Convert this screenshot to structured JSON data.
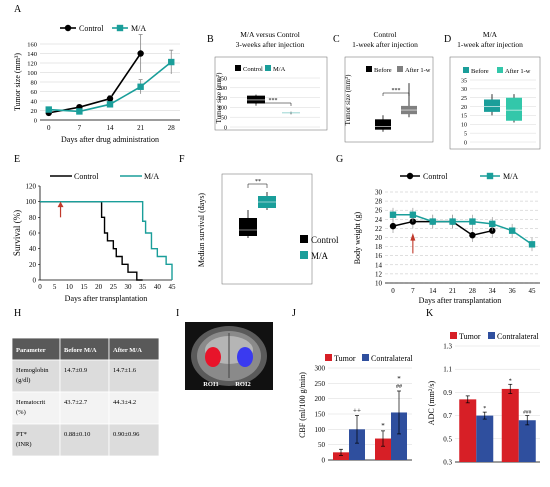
{
  "letters": {
    "A": "A",
    "B": "B",
    "C": "C",
    "D": "D",
    "E": "E",
    "F": "F",
    "G": "G",
    "H": "H",
    "I": "I",
    "J": "J",
    "K": "K"
  },
  "colors": {
    "control": "#000000",
    "ma": "#1a9e9a",
    "before": "#000000",
    "after": "#808080",
    "before_d": "#1a9e9a",
    "after_d": "#33c7aa",
    "tumor": "#d71f26",
    "contra": "#2f4f9e",
    "arrow": "#c0392b",
    "table_head": "#595959",
    "table_a": "#dcdcdc",
    "table_b": "#f3f3f3"
  },
  "panelA": {
    "ylabel": "Tumor size (mm³)",
    "xlabel": "Days after drug administration",
    "legend": [
      "Control",
      "M/A"
    ],
    "xticks": [
      "0",
      "7",
      "14",
      "21",
      "28"
    ],
    "yticks": [
      "0",
      "20",
      "40",
      "60",
      "80",
      "100",
      "120",
      "140",
      "160"
    ],
    "chart_data": {
      "type": "line",
      "x": [
        0,
        7,
        14,
        21,
        28
      ],
      "ylim": [
        0,
        160
      ],
      "series": [
        {
          "name": "Control",
          "values": [
            15,
            27,
            45,
            140,
            null
          ],
          "err": [
            3,
            4,
            6,
            40,
            null
          ]
        },
        {
          "name": "M/A",
          "values": [
            22,
            18,
            33,
            70,
            122
          ],
          "err": [
            3,
            3,
            5,
            15,
            25
          ]
        }
      ]
    }
  },
  "panelB": {
    "title": "M/A versus Control\n3-weeks after injection",
    "legend": [
      "Control",
      "M/A"
    ],
    "ylabel": "Tumor size (mm³)",
    "yticks": [
      "0",
      "50",
      "100",
      "150",
      "200",
      "250"
    ],
    "sig": "***",
    "chart_data": {
      "type": "box",
      "categories": [
        "Control",
        "M/A"
      ],
      "ylim": [
        0,
        250
      ],
      "boxes": [
        {
          "min": 115,
          "q1": 120,
          "median": 138,
          "q3": 160,
          "max": 165
        },
        {
          "min": 65,
          "q1": 70,
          "median": 72,
          "q3": 75,
          "max": 78
        }
      ]
    }
  },
  "panelC": {
    "title": "Control\n1-week after injection",
    "legend": [
      "Before",
      "After 1-w"
    ],
    "ylabel": "Tumor size (mm³)",
    "sig": "***",
    "chart_data": {
      "type": "box",
      "categories": [
        "Before",
        "After 1-w"
      ],
      "ylim": [
        0,
        60
      ],
      "boxes": [
        {
          "min": 8,
          "q1": 10,
          "median": 13,
          "q3": 20,
          "max": 24
        },
        {
          "min": 22,
          "q1": 25,
          "median": 29,
          "q3": 33,
          "max": 55
        }
      ]
    }
  },
  "panelD": {
    "title": "M/A\n1-week after injection",
    "legend": [
      "Before",
      "After 1-w"
    ],
    "yticks": [
      "0",
      "5",
      "10",
      "15",
      "20",
      "25",
      "30",
      "35"
    ],
    "chart_data": {
      "type": "box",
      "categories": [
        "Before",
        "After 1-w"
      ],
      "ylim": [
        0,
        35
      ],
      "boxes": [
        {
          "min": 15,
          "q1": 17,
          "median": 20,
          "q3": 24,
          "max": 27
        },
        {
          "min": 11,
          "q1": 12,
          "median": 18,
          "q3": 25,
          "max": 27
        }
      ]
    }
  },
  "panelE": {
    "ylabel": "Survival (%)",
    "xlabel": "Days after transplantation",
    "legend": [
      "Control",
      "M/A"
    ],
    "xticks": [
      "0",
      "5",
      "10",
      "15",
      "20",
      "25",
      "30",
      "35",
      "40",
      "45"
    ],
    "yticks": [
      "0",
      "20",
      "40",
      "60",
      "80",
      "100",
      "120"
    ],
    "chart_data": {
      "type": "step",
      "xlim": [
        0,
        45
      ],
      "ylim": [
        0,
        120
      ],
      "series": [
        {
          "name": "Control",
          "x": [
            0,
            20,
            21,
            22,
            23,
            25,
            26,
            28,
            30,
            33,
            35
          ],
          "y": [
            100,
            100,
            80,
            60,
            50,
            40,
            30,
            20,
            10,
            0,
            0
          ]
        },
        {
          "name": "M/A",
          "x": [
            0,
            34,
            35,
            36,
            38,
            40,
            43,
            45
          ],
          "y": [
            100,
            100,
            75,
            60,
            40,
            30,
            20,
            0
          ]
        }
      ],
      "arrow_day": 7
    }
  },
  "panelF": {
    "ylabel": "Median survival (days)",
    "legend": [
      "Control",
      "M/A"
    ],
    "sig": "**",
    "yticks": [
      "0",
      "10",
      "20",
      "30",
      "40",
      "50"
    ],
    "chart_data": {
      "type": "box",
      "categories": [
        "Control",
        "M/A"
      ],
      "ylim": [
        0,
        50
      ],
      "boxes": [
        {
          "min": 21,
          "q1": 22,
          "median": 25,
          "q3": 31,
          "max": 35
        },
        {
          "min": 35,
          "q1": 36,
          "median": 39,
          "q3": 42,
          "max": 44
        }
      ]
    }
  },
  "panelG": {
    "ylabel": "Body weight (g)",
    "xlabel": "Days after transplantation",
    "legend": [
      "Control",
      "M/A"
    ],
    "xticks": [
      "0",
      "7",
      "14",
      "21",
      "28",
      "34",
      "36",
      "45"
    ],
    "yticks": [
      "10",
      "12",
      "14",
      "16",
      "18",
      "20",
      "22",
      "24",
      "26",
      "28",
      "30"
    ],
    "chart_data": {
      "type": "line",
      "ylim": [
        10,
        30
      ],
      "x": [
        "0",
        "7",
        "14",
        "21",
        "28",
        "34",
        "36",
        "45"
      ],
      "series": [
        {
          "name": "Control",
          "values": [
            22.5,
            23.5,
            23.5,
            23.5,
            20.5,
            21.5,
            null,
            null
          ]
        },
        {
          "name": "M/A",
          "values": [
            25,
            25,
            23.5,
            23.5,
            23.5,
            23,
            21.5,
            18.5
          ]
        }
      ],
      "arrow_index": 1
    }
  },
  "tableH": {
    "headers": [
      "Parameter",
      "Before M/A",
      "After M/A"
    ],
    "rows": [
      [
        "Hemoglobin\n(g/dl)",
        "14.7±0.9",
        "14.7±1.6"
      ],
      [
        "Hematocrit\n(%)",
        "43.7±2.7",
        "44.3±4.2"
      ],
      [
        "PT*\n(INR)",
        "0.88±0.10",
        "0.90±0.96"
      ]
    ]
  },
  "panelI": {
    "roi1": "ROI1",
    "roi2": "ROI2"
  },
  "panelJ": {
    "ylabel": "CBF (ml/100 g/min)",
    "legend": [
      "Tumor",
      "Contralateral"
    ],
    "yticks": [
      "0",
      "50",
      "100",
      "150",
      "200",
      "250",
      "300"
    ],
    "annot": [
      "++",
      "*",
      "*",
      "##"
    ],
    "chart_data": {
      "type": "bar",
      "ylim": [
        0,
        300
      ],
      "series": [
        {
          "name": "Tumor",
          "values": [
            25,
            70
          ],
          "err": [
            10,
            25
          ]
        },
        {
          "name": "Contralateral",
          "values": [
            100,
            155
          ],
          "err": [
            45,
            70
          ]
        }
      ]
    }
  },
  "panelK": {
    "ylabel": "ADC (mm²/s)",
    "legend": [
      "Tumor",
      "Contralateral"
    ],
    "yticks": [
      "0.3",
      "0.5",
      "0.7",
      "0.9",
      "1.1",
      "1.3"
    ],
    "annot": [
      "*",
      "*",
      "###"
    ],
    "chart_data": {
      "type": "bar",
      "ylim": [
        0.3,
        1.3
      ],
      "series": [
        {
          "name": "Tumor",
          "values": [
            0.84,
            0.93
          ],
          "err": [
            0.03,
            0.04
          ]
        },
        {
          "name": "Contralateral",
          "values": [
            0.7,
            0.66
          ],
          "err": [
            0.03,
            0.04
          ]
        }
      ]
    }
  }
}
